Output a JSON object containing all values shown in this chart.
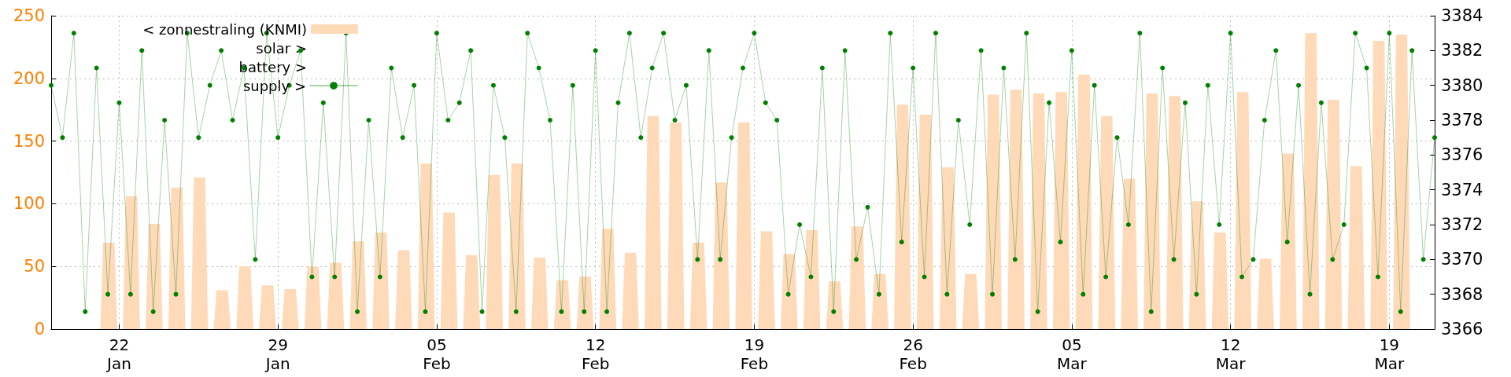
{
  "chart_data": {
    "type": "area",
    "xlim": [
      "--01-19",
      "--03-21"
    ],
    "xticks": [
      {
        "value": "--01-22",
        "label": "22\nJan"
      },
      {
        "value": "--01-29",
        "label": "29\nJan"
      },
      {
        "value": "--02-05",
        "label": "05\nFeb"
      },
      {
        "value": "--02-12",
        "label": "12\nFeb"
      },
      {
        "value": "--02-19",
        "label": "19\nFeb"
      },
      {
        "value": "--02-26",
        "label": "26\nFeb"
      },
      {
        "value": "--03-05",
        "label": "05\nMar"
      },
      {
        "value": "--03-12",
        "label": "12\nMar"
      },
      {
        "value": "--03-19",
        "label": "19\nMar"
      }
    ],
    "ylim": [
      0,
      250
    ],
    "yticks": [
      0,
      50,
      100,
      150,
      200,
      250
    ],
    "y2lim": [
      3366,
      3384
    ],
    "y2ticks": [
      3366,
      3368,
      3370,
      3372,
      3374,
      3376,
      3378,
      3380,
      3382,
      3384
    ],
    "grid": true,
    "legend": "top left",
    "annotations": [
      "solar >",
      "battery >"
    ],
    "series": [
      {
        "name": "< zonnestraling (KNMI)",
        "color": "#ffdab9",
        "x": [
          "--01-21T04:00",
          "--01-21T07:00",
          "--01-21T19:00",
          "--01-21T22:00",
          "--01-22T04:00",
          "--01-22T07:00",
          "--01-22T19:00",
          "--01-22T22:00",
          "--01-23T04:00",
          "--01-23T07:00",
          "--01-23T19:00",
          "--01-23T22:00",
          "--01-24T04:00",
          "--01-24T07:00",
          "--01-24T19:00",
          "--01-24T22:00",
          "--01-25T04:00",
          "--01-25T07:00",
          "--01-25T19:00",
          "--01-25T22:00",
          "--01-26T04:00",
          "--01-26T07:00",
          "--01-26T19:00",
          "--01-26T22:00",
          "--01-27T04:00",
          "--01-27T07:00",
          "--01-27T19:00",
          "--01-27T22:00",
          "--01-28T04:00",
          "--01-28T07:00",
          "--01-28T19:00",
          "--01-28T22:00",
          "--01-29T04:00",
          "--01-29T07:00",
          "--01-29T19:00",
          "--01-29T22:00",
          "--01-30T04:00",
          "--01-30T07:00",
          "--01-30T19:00",
          "--01-30T22:00",
          "--01-31T04:00",
          "--01-31T07:00",
          "--01-31T19:00",
          "--01-31T22:00",
          "--02-01T04:00",
          "--02-01T07:00",
          "--02-01T19:00",
          "--02-01T22:00",
          "--02-02T04:00",
          "--02-02T07:00",
          "--02-02T19:00",
          "--02-02T22:00",
          "--02-03T04:00",
          "--02-03T07:00",
          "--02-03T19:00",
          "--02-03T22:00",
          "--02-04T04:00",
          "--02-04T07:00",
          "--02-04T19:00",
          "--02-04T22:00",
          "--02-05T04:00",
          "--02-05T07:00",
          "--02-05T19:00",
          "--02-05T22:00",
          "--02-06T04:00",
          "--02-06T07:00",
          "--02-06T19:00",
          "--02-06T22:00",
          "--02-07T04:00",
          "--02-07T07:00",
          "--02-07T19:00",
          "--02-07T22:00",
          "--02-08T04:00",
          "--02-08T07:00",
          "--02-08T19:00",
          "--02-08T22:00",
          "--02-09T04:00",
          "--02-09T07:00",
          "--02-09T19:00",
          "--02-09T22:00",
          "--02-10T04:00",
          "--02-10T07:00",
          "--02-10T19:00",
          "--02-10T22:00",
          "--02-11T04:00",
          "--02-11T07:00",
          "--02-11T19:00",
          "--02-11T22:00",
          "--02-12T04:00",
          "--02-12T07:00",
          "--02-12T19:00",
          "--02-12T22:00",
          "--02-13T04:00",
          "--02-13T07:00",
          "--02-13T19:00",
          "--02-13T22:00",
          "--02-14T04:00",
          "--02-14T07:00",
          "--02-14T19:00",
          "--02-14T22:00",
          "--02-15T04:00",
          "--02-15T07:00",
          "--02-15T19:00",
          "--02-15T22:00",
          "--02-16T04:00",
          "--02-16T07:00",
          "--02-16T19:00",
          "--02-16T22:00",
          "--02-17T04:00",
          "--02-17T07:00",
          "--02-17T19:00",
          "--02-17T22:00",
          "--02-18T04:00",
          "--02-18T07:00",
          "--02-18T19:00",
          "--02-18T22:00",
          "--02-19T04:00",
          "--02-19T07:00",
          "--02-19T19:00",
          "--02-19T22:00",
          "--02-20T04:00",
          "--02-20T07:00",
          "--02-20T19:00",
          "--02-20T22:00",
          "--02-21T04:00",
          "--02-21T07:00",
          "--02-21T19:00",
          "--02-21T22:00",
          "--02-22T04:00",
          "--02-22T07:00",
          "--02-22T19:00",
          "--02-22T22:00",
          "--02-23T04:00",
          "--02-23T07:00",
          "--02-23T19:00",
          "--02-23T22:00",
          "--02-24T04:00",
          "--02-24T07:00",
          "--02-24T19:00",
          "--02-24T22:00",
          "--02-25T04:00",
          "--02-25T07:00",
          "--02-25T19:00",
          "--02-25T22:00",
          "--02-26T04:00",
          "--02-26T07:00",
          "--02-26T19:00",
          "--02-26T22:00",
          "--02-27T04:00",
          "--02-27T07:00",
          "--02-27T19:00",
          "--02-27T22:00",
          "--02-28T04:00",
          "--02-28T07:00",
          "--02-28T19:00",
          "--02-28T22:00",
          "--03-01T04:00",
          "--03-01T07:00",
          "--03-01T19:00",
          "--03-01T22:00",
          "--03-02T04:00",
          "--03-02T07:00",
          "--03-02T19:00",
          "--03-02T22:00",
          "--03-03T04:00",
          "--03-03T07:00",
          "--03-03T19:00",
          "--03-03T22:00",
          "--03-04T04:00",
          "--03-04T07:00",
          "--03-04T19:00",
          "--03-04T22:00",
          "--03-05T04:00",
          "--03-05T07:00",
          "--03-05T19:00",
          "--03-05T22:00",
          "--03-06T04:00",
          "--03-06T07:00",
          "--03-06T19:00",
          "--03-06T22:00",
          "--03-07T04:00",
          "--03-07T07:00",
          "--03-07T19:00",
          "--03-07T22:00",
          "--03-08T04:00",
          "--03-08T07:00",
          "--03-08T19:00",
          "--03-08T22:00",
          "--03-09T04:00",
          "--03-09T07:00",
          "--03-09T19:00",
          "--03-09T22:00",
          "--03-10T04:00",
          "--03-10T07:00",
          "--03-10T19:00",
          "--03-10T22:00",
          "--03-11T04:00",
          "--03-11T07:00",
          "--03-11T19:00",
          "--03-11T22:00",
          "--03-12T04:00",
          "--03-12T07:00",
          "--03-12T19:00",
          "--03-12T22:00",
          "--03-13T04:00",
          "--03-13T07:00",
          "--03-13T19:00",
          "--03-13T22:00",
          "--03-14T04:00",
          "--03-14T07:00",
          "--03-14T19:00",
          "--03-14T22:00",
          "--03-15T04:00",
          "--03-15T07:00",
          "--03-15T19:00",
          "--03-15T22:00",
          "--03-16T04:00",
          "--03-16T07:00",
          "--03-16T19:00",
          "--03-16T22:00",
          "--03-17T04:00",
          "--03-17T07:00",
          "--03-17T19:00",
          "--03-17T22:00",
          "--03-18T04:00",
          "--03-18T07:00",
          "--03-18T19:00",
          "--03-18T22:00",
          "--03-19T04:00",
          "--03-19T07:00",
          "--03-19T19:00",
          "--03-19T22:00"
        ],
        "values": [
          0,
          69,
          69,
          0,
          0,
          106,
          106,
          0,
          0,
          84,
          84,
          0,
          0,
          113,
          113,
          0,
          0,
          121,
          121,
          0,
          0,
          31,
          31,
          0,
          0,
          50,
          50,
          0,
          0,
          35,
          35,
          0,
          0,
          32,
          32,
          0,
          0,
          50,
          50,
          0,
          0,
          53,
          53,
          0,
          0,
          70,
          70,
          0,
          0,
          77,
          77,
          0,
          0,
          63,
          63,
          0,
          0,
          132,
          132,
          0,
          0,
          93,
          93,
          0,
          0,
          59,
          59,
          0,
          0,
          123,
          123,
          0,
          0,
          132,
          132,
          0,
          0,
          57,
          57,
          0,
          0,
          39,
          39,
          0,
          0,
          42,
          42,
          0,
          0,
          80,
          80,
          0,
          0,
          61,
          61,
          0,
          0,
          170,
          170,
          0,
          0,
          165,
          165,
          0,
          0,
          69,
          69,
          0,
          0,
          117,
          117,
          0,
          0,
          165,
          165,
          0,
          0,
          78,
          78,
          0,
          0,
          60,
          60,
          0,
          0,
          79,
          79,
          0,
          0,
          38,
          38,
          0,
          0,
          82,
          82,
          0,
          0,
          44,
          44,
          0,
          0,
          179,
          179,
          0,
          0,
          171,
          171,
          0,
          0,
          129,
          129,
          0,
          0,
          44,
          44,
          0,
          0,
          187,
          187,
          0,
          0,
          191,
          191,
          0,
          0,
          188,
          188,
          0,
          0,
          189,
          189,
          0,
          0,
          203,
          203,
          0,
          0,
          170,
          170,
          0,
          0,
          120,
          120,
          0,
          0,
          188,
          188,
          0,
          0,
          186,
          186,
          0,
          0,
          102,
          102,
          0,
          0,
          77,
          77,
          0,
          0,
          189,
          189,
          0,
          0,
          56,
          56,
          0,
          0,
          140,
          140,
          0,
          0,
          236,
          236,
          0,
          0,
          183,
          183,
          0,
          0,
          130,
          130,
          0,
          0,
          230,
          230,
          0,
          0,
          235,
          235,
          0
        ]
      },
      {
        "name": "supply >",
        "type": "line",
        "axis": "y2",
        "color": "#008000",
        "marker": "circle",
        "x": [
          "--01-19T00:00",
          "--01-19T12:00",
          "--01-20T00:00",
          "--01-20T12:00",
          "--01-21T00:00",
          "--01-21T12:00",
          "--01-22T00:00",
          "--01-22T12:00",
          "--01-23T00:00",
          "--01-23T12:00",
          "--01-24T00:00",
          "--01-24T12:00",
          "--01-25T00:00",
          "--01-25T12:00",
          "--01-26T00:00",
          "--01-26T12:00",
          "--01-27T00:00",
          "--01-27T12:00",
          "--01-28T00:00",
          "--01-28T12:00",
          "--01-29T00:00",
          "--01-29T12:00",
          "--01-30T00:00",
          "--01-30T12:00",
          "--01-31T00:00",
          "--01-31T12:00",
          "--02-01T00:00",
          "--02-01T12:00",
          "--02-02T00:00",
          "--02-02T12:00",
          "--02-03T00:00",
          "--02-03T12:00",
          "--02-04T00:00",
          "--02-04T12:00",
          "--02-05T00:00",
          "--02-05T12:00",
          "--02-06T00:00",
          "--02-06T12:00",
          "--02-07T00:00",
          "--02-07T12:00",
          "--02-08T00:00",
          "--02-08T12:00",
          "--02-09T00:00",
          "--02-09T12:00",
          "--02-10T00:00",
          "--02-10T12:00",
          "--02-11T00:00",
          "--02-11T12:00",
          "--02-12T00:00",
          "--02-12T12:00",
          "--02-13T00:00",
          "--02-13T12:00",
          "--02-14T00:00",
          "--02-14T12:00",
          "--02-15T00:00",
          "--02-15T12:00",
          "--02-16T00:00",
          "--02-16T12:00",
          "--02-17T00:00",
          "--02-17T12:00",
          "--02-18T00:00",
          "--02-18T12:00",
          "--02-19T00:00",
          "--02-19T12:00",
          "--02-20T00:00",
          "--02-20T12:00",
          "--02-21T00:00",
          "--02-21T12:00",
          "--02-22T00:00",
          "--02-22T12:00",
          "--02-23T00:00",
          "--02-23T12:00",
          "--02-24T00:00",
          "--02-24T12:00",
          "--02-25T00:00",
          "--02-25T12:00",
          "--02-26T00:00",
          "--02-26T12:00",
          "--02-27T00:00",
          "--02-27T12:00",
          "--02-28T00:00",
          "--02-28T12:00",
          "--03-01T00:00",
          "--03-01T12:00",
          "--03-02T00:00",
          "--03-02T12:00",
          "--03-03T00:00",
          "--03-03T12:00",
          "--03-04T00:00",
          "--03-04T12:00",
          "--03-05T00:00",
          "--03-05T12:00",
          "--03-06T00:00",
          "--03-06T12:00",
          "--03-07T00:00",
          "--03-07T12:00",
          "--03-08T00:00",
          "--03-08T12:00",
          "--03-09T00:00",
          "--03-09T12:00",
          "--03-10T00:00",
          "--03-10T12:00",
          "--03-11T00:00",
          "--03-11T12:00",
          "--03-12T00:00",
          "--03-12T12:00",
          "--03-13T00:00",
          "--03-13T12:00",
          "--03-14T00:00",
          "--03-14T12:00",
          "--03-15T00:00",
          "--03-15T12:00",
          "--03-16T00:00",
          "--03-16T12:00",
          "--03-17T00:00",
          "--03-17T12:00",
          "--03-18T00:00",
          "--03-18T12:00",
          "--03-19T00:00",
          "--03-19T12:00",
          "--03-20T00:00",
          "--03-20T12:00",
          "--03-21T00:00"
        ],
        "values": [
          3380,
          3377,
          3383,
          3367,
          3381,
          3368,
          3379,
          3368,
          3382,
          3367,
          3378,
          3368,
          3383,
          3377,
          3380,
          3382,
          3378,
          3381,
          3370,
          3383,
          3377,
          3380,
          3382,
          3369,
          3379,
          3369,
          3383,
          3367,
          3378,
          3369,
          3381,
          3377,
          3380,
          3367,
          3383,
          3378,
          3379,
          3382,
          3367,
          3380,
          3377,
          3367,
          3383,
          3381,
          3378,
          3367,
          3380,
          3367,
          3382,
          3367,
          3379,
          3383,
          3377,
          3381,
          3383,
          3378,
          3380,
          3370,
          3382,
          3370,
          3377,
          3381,
          3383,
          3379,
          3378,
          3368,
          3372,
          3369,
          3381,
          3367,
          3382,
          3370,
          3373,
          3368,
          3383,
          3371,
          3381,
          3369,
          3383,
          3368,
          3378,
          3372,
          3382,
          3368,
          3381,
          3370,
          3383,
          3367,
          3379,
          3371,
          3382,
          3368,
          3380,
          3369,
          3377,
          3372,
          3383,
          3367,
          3381,
          3370,
          3379,
          3368,
          3380,
          3372,
          3383,
          3369,
          3370,
          3378,
          3382,
          3371,
          3380,
          3368,
          3379,
          3370,
          3372,
          3383,
          3381,
          3369,
          3383,
          3367,
          3382,
          3370,
          3377
        ]
      }
    ]
  }
}
